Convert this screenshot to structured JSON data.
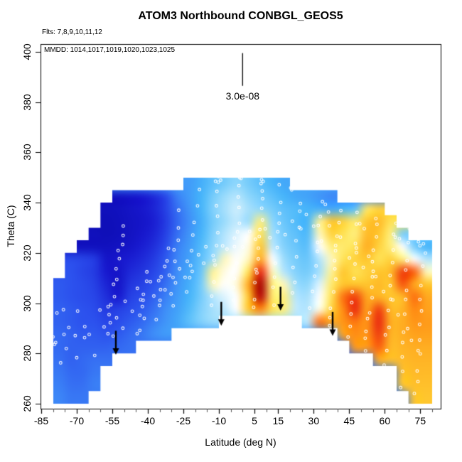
{
  "title": "ATOM3 Northbound CONBGL_GEOS5",
  "flights_note": "Flts: 7,8,9,10,11,12",
  "mmdd_note": "MMDD: 1014,1017,1019,1020,1023,1025",
  "scale_bar": {
    "label": "3.0e-08",
    "lat": 0,
    "theta_top": 399.5,
    "theta_bottom": 386.5
  },
  "axes": {
    "x": {
      "label": "Latitude (deg N)",
      "min": -85.3,
      "max": 83.6,
      "major_ticks": [
        -85,
        -70,
        -55,
        -40,
        -25,
        -10,
        5,
        15,
        30,
        45,
        60,
        75
      ],
      "major_labels": [
        "-85",
        "-70",
        "-55",
        "-40",
        "-25",
        "-10",
        "5",
        "15",
        "30",
        "45",
        "60",
        "75"
      ],
      "minor_step": 5,
      "minor_range": [
        -85,
        80
      ]
    },
    "y": {
      "label": "Theta (C)",
      "min": 258,
      "max": 403.1,
      "major_ticks": [
        260,
        280,
        300,
        320,
        340,
        360,
        380,
        400
      ],
      "major_labels": [
        "260",
        "280",
        "300",
        "320",
        "340",
        "360",
        "380",
        "400"
      ]
    }
  },
  "chart_data": {
    "type": "heatmap",
    "title": "ATOM3 Northbound CONBGL_GEOS5",
    "xlabel": "Latitude (deg N)",
    "ylabel": "Theta (C)",
    "xlim": [
      -85.3,
      83.6
    ],
    "ylim": [
      258,
      403.1
    ],
    "grid_on": false,
    "value_scale": {
      "min": 0,
      "max": 10,
      "note": "relative tracer value; plot scale bar marks 3.0e-08"
    },
    "lat_bins": {
      "start": -80,
      "step": 5,
      "count": 32
    },
    "theta_rows": {
      "top_band": [
        345,
        350
      ],
      "step": -5,
      "count": 18
    },
    "colormap": [
      [
        0,
        "#0808a8"
      ],
      [
        1.2,
        "#1818cf"
      ],
      [
        2.2,
        "#2c52ee"
      ],
      [
        3,
        "#3f8ff8"
      ],
      [
        3.6,
        "#46b5fa"
      ],
      [
        4.2,
        "#8ed7fc"
      ],
      [
        4.7,
        "#cdeefd"
      ],
      [
        5,
        "#ffffff"
      ],
      [
        5.4,
        "#fff9c9"
      ],
      [
        6,
        "#ffef7e"
      ],
      [
        6.6,
        "#ffdf4d"
      ],
      [
        7,
        "#ffc62e"
      ],
      [
        7.5,
        "#ffa81f"
      ],
      [
        8,
        "#ff8812"
      ],
      [
        8.5,
        "#fa5f0e"
      ],
      [
        9,
        "#ea2a10"
      ],
      [
        9.5,
        "#cf0d0d"
      ],
      [
        10,
        "#a80000"
      ]
    ],
    "grid": [
      [
        null,
        null,
        null,
        null,
        null,
        null,
        null,
        null,
        null,
        null,
        null,
        3.2,
        3.5,
        3.8,
        4,
        4.2,
        4,
        3.8,
        3.6,
        3.4,
        null,
        null,
        null,
        null,
        null,
        null,
        null,
        null,
        null,
        null,
        null,
        null
      ],
      [
        null,
        null,
        null,
        null,
        null,
        0.8,
        1,
        1.2,
        1.5,
        2,
        2.8,
        3.2,
        3.6,
        4,
        4.3,
        4.5,
        4.2,
        4,
        3.8,
        3.6,
        3.4,
        3.3,
        3.1,
        2.9,
        null,
        null,
        null,
        null,
        null,
        null,
        null,
        null
      ],
      [
        null,
        null,
        null,
        null,
        0.6,
        0.7,
        0.9,
        1.1,
        1.4,
        1.9,
        2.6,
        3.1,
        3.6,
        4.1,
        4.4,
        4.7,
        4.4,
        4.2,
        4,
        3.8,
        3.7,
        3.6,
        3.5,
        3.4,
        3.6,
        3.8,
        6.3,
        6.8,
        null,
        null,
        null,
        null
      ],
      [
        null,
        null,
        null,
        null,
        0.5,
        0.6,
        0.8,
        1,
        1.3,
        1.8,
        2.5,
        3,
        3.5,
        4,
        4.3,
        4.6,
        4.3,
        6,
        4.2,
        3.9,
        3.7,
        3.6,
        5.8,
        7,
        6.8,
        6.2,
        7,
        7.2,
        6.5,
        null,
        null,
        null
      ],
      [
        null,
        null,
        null,
        0.6,
        0.5,
        0.6,
        0.8,
        1.1,
        1.4,
        1.9,
        2.6,
        3.1,
        3.6,
        4.1,
        4.5,
        4.8,
        5,
        6.5,
        4.4,
        4,
        3.8,
        3.7,
        5.5,
        6.8,
        6.5,
        6,
        7.2,
        7,
        6,
        4,
        null,
        null
      ],
      [
        null,
        null,
        0.7,
        0.7,
        0.7,
        0.8,
        1,
        1.3,
        1.6,
        2.1,
        2.8,
        3.2,
        3.7,
        4.2,
        4.6,
        4.9,
        5.2,
        7,
        4.6,
        4.1,
        3.9,
        3.8,
        5,
        6,
        6.2,
        6.5,
        7.4,
        6.8,
        6,
        5,
        4,
        3.6
      ],
      [
        null,
        2.1,
        2,
        1.8,
        1,
        1.1,
        1.3,
        1.5,
        1.8,
        2.3,
        2.9,
        3.3,
        3.8,
        4.3,
        5.5,
        5,
        5.5,
        7.5,
        5,
        4.3,
        4,
        3.9,
        4.5,
        5.5,
        6.5,
        6.8,
        7,
        6.5,
        6.8,
        6,
        5,
        4.5
      ],
      [
        null,
        2.2,
        2,
        1.8,
        1.2,
        1,
        1.5,
        1.7,
        2,
        2.4,
        3,
        3.4,
        3.9,
        5.8,
        5.2,
        5,
        6.5,
        9,
        5.5,
        4.5,
        4.1,
        4,
        4.4,
        5.8,
        7,
        6.5,
        6.8,
        7,
        7.2,
        8.8,
        8.5,
        5.5
      ],
      [
        2.3,
        2.2,
        2.1,
        1.9,
        1.4,
        1,
        1.7,
        1.9,
        2.2,
        2.6,
        3.1,
        3.5,
        4,
        5.5,
        5,
        5.3,
        7.5,
        10,
        6,
        5.5,
        4.3,
        4.2,
        4.8,
        6.2,
        7,
        7,
        7,
        7.2,
        7,
        8.6,
        7.5,
        7
      ],
      [
        2.3,
        2.2,
        2.1,
        2,
        1.6,
        1.2,
        1.9,
        2.1,
        2.4,
        2.8,
        3.2,
        3.6,
        4,
        4.5,
        4.8,
        5,
        7,
        9.8,
        6.2,
        6,
        4.5,
        4.4,
        5,
        6.5,
        8.3,
        8.8,
        7.5,
        7.3,
        7,
        7.2,
        8.3,
        7.5
      ],
      [
        2.4,
        2.3,
        2.2,
        2.1,
        1.8,
        1.9,
        2.1,
        2.3,
        2.6,
        3,
        3.3,
        3.7,
        4.1,
        4.4,
        4.6,
        5,
        7,
        8,
        6.5,
        6,
        4.6,
        4.5,
        5.2,
        6.8,
        8,
        9,
        7.6,
        8.8,
        7.2,
        7.3,
        8,
        7.6
      ],
      [
        2.4,
        2.3,
        2.2,
        2.2,
        2,
        2.1,
        2.3,
        2.5,
        2.8,
        3.1,
        3.4,
        3.8,
        4.1,
        4.3,
        null,
        null,
        null,
        null,
        null,
        null,
        null,
        4.6,
        8.3,
        7.5,
        7.8,
        8.2,
        7.8,
        9,
        7.4,
        7.4,
        7.8,
        7.7
      ],
      [
        2.5,
        2.4,
        2.3,
        2.3,
        2.2,
        2.3,
        2.5,
        2.7,
        3,
        3.2,
        null,
        null,
        null,
        null,
        null,
        null,
        null,
        null,
        null,
        null,
        null,
        null,
        null,
        null,
        7.6,
        7.9,
        7.8,
        8.8,
        7.3,
        7.4,
        7.6,
        7.6
      ],
      [
        2.5,
        2.4,
        2.4,
        2.4,
        2.4,
        2.5,
        2.6,
        null,
        null,
        null,
        null,
        null,
        null,
        null,
        null,
        null,
        null,
        null,
        null,
        null,
        null,
        null,
        null,
        null,
        null,
        7.7,
        7.7,
        8.5,
        7.2,
        7.3,
        7.4,
        7.4
      ],
      [
        2.6,
        2.4,
        2.5,
        2.6,
        2.6,
        null,
        null,
        null,
        null,
        null,
        null,
        null,
        null,
        null,
        null,
        null,
        null,
        null,
        null,
        null,
        null,
        null,
        null,
        null,
        null,
        null,
        null,
        7.4,
        7.1,
        7.2,
        7.3,
        7.3
      ],
      [
        2.7,
        2.5,
        2.5,
        2.7,
        null,
        null,
        null,
        null,
        null,
        null,
        null,
        null,
        null,
        null,
        null,
        null,
        null,
        null,
        null,
        null,
        null,
        null,
        null,
        null,
        null,
        null,
        null,
        null,
        null,
        7.1,
        7.2,
        7.2
      ],
      [
        2.8,
        2.6,
        2.6,
        2.8,
        null,
        null,
        null,
        null,
        null,
        null,
        null,
        null,
        null,
        null,
        null,
        null,
        null,
        null,
        null,
        null,
        null,
        null,
        null,
        null,
        null,
        null,
        null,
        null,
        null,
        7,
        7.1,
        7.1
      ],
      [
        2.9,
        2.7,
        2.7,
        null,
        null,
        null,
        null,
        null,
        null,
        null,
        null,
        null,
        null,
        null,
        null,
        null,
        null,
        null,
        null,
        null,
        null,
        null,
        null,
        null,
        null,
        null,
        null,
        null,
        null,
        null,
        7,
        7
      ]
    ],
    "arrows_lat_theta": [
      [
        -53.5,
        279.5
      ],
      [
        -9,
        291
      ],
      [
        16,
        297
      ],
      [
        38,
        287
      ]
    ],
    "sample_tracks": [
      [
        -57,
        288,
        -50,
        332,
        13
      ],
      [
        -44,
        287,
        -40,
        312,
        8
      ],
      [
        -36,
        294,
        -32,
        322,
        8
      ],
      [
        -30,
        300,
        -27,
        336,
        8
      ],
      [
        -23,
        303,
        -19,
        344,
        8
      ],
      [
        -13,
        299,
        -10,
        349,
        11
      ],
      [
        -4,
        300,
        -1,
        349,
        10
      ],
      [
        5,
        299,
        9,
        349,
        14
      ],
      [
        13,
        300,
        16,
        346,
        9
      ],
      [
        21,
        303,
        24,
        341,
        8
      ],
      [
        29,
        299,
        33,
        340,
        9
      ],
      [
        37,
        290,
        41,
        336,
        11
      ],
      [
        45,
        286,
        49,
        335,
        11
      ],
      [
        52,
        281,
        57,
        334,
        14
      ],
      [
        60,
        276,
        64,
        331,
        12
      ],
      [
        67,
        266,
        70,
        329,
        12
      ],
      [
        73,
        263,
        77,
        325,
        12
      ]
    ],
    "sample_points": [
      [
        -79,
        283
      ],
      [
        -78,
        295
      ],
      [
        -77,
        275
      ],
      [
        -76,
        288
      ],
      [
        -75,
        297
      ],
      [
        -74,
        282
      ],
      [
        -73,
        291
      ],
      [
        -71,
        287
      ],
      [
        -70,
        278
      ],
      [
        -69,
        296
      ],
      [
        -67,
        285
      ],
      [
        -66,
        292
      ],
      [
        -64,
        288
      ],
      [
        -62,
        280
      ],
      [
        -61,
        297
      ],
      [
        -59,
        291
      ],
      [
        -57,
        300
      ],
      [
        -55,
        286
      ],
      [
        -53,
        295
      ],
      [
        -51,
        290
      ],
      [
        -49,
        302
      ],
      [
        -47,
        297
      ],
      [
        -45,
        305
      ],
      [
        -43,
        300
      ],
      [
        -41,
        295
      ],
      [
        -39,
        308
      ],
      [
        -37,
        302
      ],
      [
        -35,
        310
      ],
      [
        -33,
        305
      ],
      [
        -31,
        312
      ],
      [
        -29,
        308
      ],
      [
        -27,
        315
      ],
      [
        -25,
        310
      ],
      [
        -23,
        318
      ],
      [
        -21,
        312
      ],
      [
        -19,
        320
      ],
      [
        -17,
        316
      ],
      [
        -15,
        322
      ],
      [
        -12,
        318
      ],
      [
        -9,
        324
      ],
      [
        -6,
        320
      ],
      [
        -3,
        326
      ],
      [
        0,
        322
      ],
      [
        3,
        328
      ],
      [
        6,
        324
      ],
      [
        9,
        330
      ],
      [
        12,
        326
      ],
      [
        15,
        332
      ],
      [
        18,
        328
      ],
      [
        21,
        334
      ],
      [
        24,
        330
      ],
      [
        27,
        336
      ],
      [
        30,
        332
      ],
      [
        33,
        326
      ],
      [
        36,
        330
      ],
      [
        39,
        322
      ],
      [
        42,
        326
      ],
      [
        45,
        318
      ],
      [
        48,
        322
      ],
      [
        51,
        314
      ],
      [
        54,
        318
      ],
      [
        57,
        310
      ],
      [
        60,
        305
      ],
      [
        63,
        300
      ],
      [
        66,
        295
      ],
      [
        69,
        290
      ],
      [
        72,
        285
      ],
      [
        75,
        280
      ],
      [
        -80,
        316
      ],
      [
        -80,
        318
      ],
      [
        -79,
        317
      ],
      [
        -79,
        319
      ],
      [
        -80,
        320
      ],
      [
        -79,
        315
      ],
      [
        -80,
        286
      ],
      [
        -79,
        284
      ],
      [
        -12,
        348
      ],
      [
        -11,
        349
      ],
      [
        -10,
        348
      ],
      [
        -2,
        349
      ],
      [
        -1,
        348
      ],
      [
        7,
        349
      ],
      [
        8,
        348
      ],
      [
        20,
        345
      ],
      [
        21,
        344
      ],
      [
        35,
        338
      ],
      [
        36,
        337
      ],
      [
        50,
        332
      ],
      [
        51,
        331
      ],
      [
        65,
        327
      ],
      [
        66,
        326
      ],
      [
        74,
        323
      ],
      [
        75,
        322
      ]
    ]
  }
}
